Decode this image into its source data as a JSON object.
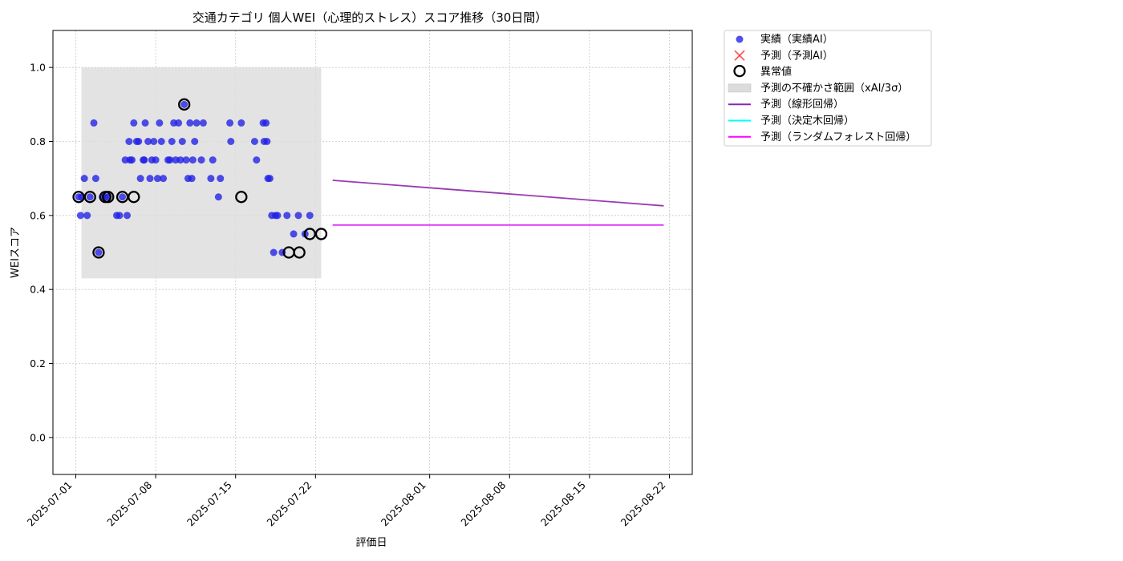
{
  "chart_data": {
    "type": "scatter",
    "title": "交通カテゴリ 個人WEI（心理的ストレス）スコア推移（30日間）",
    "xlabel": "評価日",
    "ylabel": "WEIスコア",
    "xlim": [
      "2025-06-29",
      "2025-08-24"
    ],
    "ylim": [
      -0.1,
      1.1
    ],
    "x_ticks": [
      "2025-07-01",
      "2025-07-08",
      "2025-07-15",
      "2025-07-22",
      "2025-08-01",
      "2025-08-08",
      "2025-08-15",
      "2025-08-22"
    ],
    "y_ticks": [
      "0.0",
      "0.2",
      "0.4",
      "0.6",
      "0.8",
      "1.0"
    ],
    "grid": true,
    "legend_position": "outside-top-right",
    "colors": {
      "actual": "#1f1fe6",
      "predicted": "#ff3030",
      "outlier": "#000000",
      "band": "#dcdcdc",
      "linear": "#8e24aa",
      "tree": "#00ffff",
      "forest": "#ff00ff"
    },
    "legend": [
      {
        "key": "actual",
        "label": "実績（実績AI）",
        "marker": "dot"
      },
      {
        "key": "predicted",
        "label": "予測（予測AI）",
        "marker": "x"
      },
      {
        "key": "outlier",
        "label": "異常値",
        "marker": "ring"
      },
      {
        "key": "band",
        "label": "予測の不確かさ範囲（xAI/3σ）",
        "marker": "rect"
      },
      {
        "key": "linear",
        "label": "予測（線形回帰）",
        "marker": "line"
      },
      {
        "key": "tree",
        "label": "予測（決定木回帰）",
        "marker": "line"
      },
      {
        "key": "forest",
        "label": "予測（ランダムフォレスト回帰）",
        "marker": "line"
      }
    ],
    "uncertainty_band": {
      "x": [
        "2025-07-01 12:00",
        "2025-07-22 12:00"
      ],
      "y": [
        0.43,
        1.0
      ]
    },
    "actual_points": [
      {
        "x": "2025-07-01 06:00",
        "y": 0.65
      },
      {
        "x": "2025-07-01 10:00",
        "y": 0.6
      },
      {
        "x": "2025-07-01 12:00",
        "y": 0.65
      },
      {
        "x": "2025-07-01 18:00",
        "y": 0.7
      },
      {
        "x": "2025-07-02 00:00",
        "y": 0.6
      },
      {
        "x": "2025-07-02 06:00",
        "y": 0.65
      },
      {
        "x": "2025-07-02 14:00",
        "y": 0.85
      },
      {
        "x": "2025-07-02 18:00",
        "y": 0.7
      },
      {
        "x": "2025-07-03 00:00",
        "y": 0.5
      },
      {
        "x": "2025-07-03 08:00",
        "y": 0.65
      },
      {
        "x": "2025-07-03 14:00",
        "y": 0.65
      },
      {
        "x": "2025-07-03 20:00",
        "y": 0.65
      },
      {
        "x": "2025-07-04 14:00",
        "y": 0.6
      },
      {
        "x": "2025-07-04 20:00",
        "y": 0.6
      },
      {
        "x": "2025-07-05 02:00",
        "y": 0.65
      },
      {
        "x": "2025-07-05 08:00",
        "y": 0.75
      },
      {
        "x": "2025-07-05 12:00",
        "y": 0.6
      },
      {
        "x": "2025-07-05 16:00",
        "y": 0.8
      },
      {
        "x": "2025-07-05 18:00",
        "y": 0.75
      },
      {
        "x": "2025-07-05 22:00",
        "y": 0.75
      },
      {
        "x": "2025-07-06 02:00",
        "y": 0.85
      },
      {
        "x": "2025-07-06 08:00",
        "y": 0.8
      },
      {
        "x": "2025-07-06 12:00",
        "y": 0.8
      },
      {
        "x": "2025-07-06 16:00",
        "y": 0.7
      },
      {
        "x": "2025-07-06 22:00",
        "y": 0.75
      },
      {
        "x": "2025-07-07 00:00",
        "y": 0.75
      },
      {
        "x": "2025-07-07 02:00",
        "y": 0.85
      },
      {
        "x": "2025-07-07 08:00",
        "y": 0.8
      },
      {
        "x": "2025-07-07 12:00",
        "y": 0.7
      },
      {
        "x": "2025-07-07 16:00",
        "y": 0.75
      },
      {
        "x": "2025-07-07 20:00",
        "y": 0.8
      },
      {
        "x": "2025-07-08 00:00",
        "y": 0.75
      },
      {
        "x": "2025-07-08 04:00",
        "y": 0.7
      },
      {
        "x": "2025-07-08 08:00",
        "y": 0.85
      },
      {
        "x": "2025-07-08 12:00",
        "y": 0.8
      },
      {
        "x": "2025-07-08 16:00",
        "y": 0.7
      },
      {
        "x": "2025-07-09 02:00",
        "y": 0.75
      },
      {
        "x": "2025-07-09 06:00",
        "y": 0.75
      },
      {
        "x": "2025-07-09 10:00",
        "y": 0.8
      },
      {
        "x": "2025-07-09 14:00",
        "y": 0.85
      },
      {
        "x": "2025-07-09 18:00",
        "y": 0.75
      },
      {
        "x": "2025-07-10 00:00",
        "y": 0.85
      },
      {
        "x": "2025-07-10 04:00",
        "y": 0.75
      },
      {
        "x": "2025-07-10 08:00",
        "y": 0.8
      },
      {
        "x": "2025-07-10 12:00",
        "y": 0.9
      },
      {
        "x": "2025-07-10 16:00",
        "y": 0.75
      },
      {
        "x": "2025-07-10 20:00",
        "y": 0.7
      },
      {
        "x": "2025-07-11 00:00",
        "y": 0.85
      },
      {
        "x": "2025-07-11 04:00",
        "y": 0.7
      },
      {
        "x": "2025-07-11 06:00",
        "y": 0.75
      },
      {
        "x": "2025-07-11 10:00",
        "y": 0.8
      },
      {
        "x": "2025-07-11 14:00",
        "y": 0.85
      },
      {
        "x": "2025-07-12 00:00",
        "y": 0.75
      },
      {
        "x": "2025-07-12 04:00",
        "y": 0.85
      },
      {
        "x": "2025-07-12 20:00",
        "y": 0.7
      },
      {
        "x": "2025-07-13 00:00",
        "y": 0.75
      },
      {
        "x": "2025-07-13 12:00",
        "y": 0.65
      },
      {
        "x": "2025-07-13 16:00",
        "y": 0.7
      },
      {
        "x": "2025-07-14 12:00",
        "y": 0.85
      },
      {
        "x": "2025-07-14 14:00",
        "y": 0.8
      },
      {
        "x": "2025-07-15 12:00",
        "y": 0.85
      },
      {
        "x": "2025-07-16 16:00",
        "y": 0.8
      },
      {
        "x": "2025-07-16 20:00",
        "y": 0.75
      },
      {
        "x": "2025-07-17 10:00",
        "y": 0.85
      },
      {
        "x": "2025-07-17 12:00",
        "y": 0.8
      },
      {
        "x": "2025-07-17 16:00",
        "y": 0.85
      },
      {
        "x": "2025-07-17 18:00",
        "y": 0.8
      },
      {
        "x": "2025-07-17 20:00",
        "y": 0.7
      },
      {
        "x": "2025-07-18 00:00",
        "y": 0.7
      },
      {
        "x": "2025-07-18 04:00",
        "y": 0.6
      },
      {
        "x": "2025-07-18 08:00",
        "y": 0.5
      },
      {
        "x": "2025-07-18 12:00",
        "y": 0.6
      },
      {
        "x": "2025-07-18 16:00",
        "y": 0.6
      },
      {
        "x": "2025-07-19 02:00",
        "y": 0.5
      },
      {
        "x": "2025-07-19 12:00",
        "y": 0.6
      },
      {
        "x": "2025-07-20 02:00",
        "y": 0.55
      },
      {
        "x": "2025-07-20 12:00",
        "y": 0.6
      },
      {
        "x": "2025-07-21 02:00",
        "y": 0.55
      },
      {
        "x": "2025-07-21 12:00",
        "y": 0.6
      }
    ],
    "outliers": [
      {
        "x": "2025-07-01 06:00",
        "y": 0.65
      },
      {
        "x": "2025-07-02 06:00",
        "y": 0.65
      },
      {
        "x": "2025-07-03 00:00",
        "y": 0.5
      },
      {
        "x": "2025-07-03 14:00",
        "y": 0.65
      },
      {
        "x": "2025-07-03 20:00",
        "y": 0.65
      },
      {
        "x": "2025-07-05 02:00",
        "y": 0.65
      },
      {
        "x": "2025-07-06 02:00",
        "y": 0.65
      },
      {
        "x": "2025-07-10 12:00",
        "y": 0.9
      },
      {
        "x": "2025-07-15 12:00",
        "y": 0.65
      },
      {
        "x": "2025-07-19 16:00",
        "y": 0.5
      },
      {
        "x": "2025-07-20 14:00",
        "y": 0.5
      },
      {
        "x": "2025-07-21 12:00",
        "y": 0.55
      },
      {
        "x": "2025-07-22 12:00",
        "y": 0.55
      }
    ],
    "series": [
      {
        "key": "linear",
        "x": [
          "2025-07-23 12:00",
          "2025-08-21 12:00"
        ],
        "values": [
          0.695,
          0.626
        ]
      },
      {
        "key": "tree",
        "x": [
          "2025-07-23 12:00",
          "2025-08-21 12:00"
        ],
        "values": [
          0.574,
          0.574
        ]
      },
      {
        "key": "forest",
        "x": [
          "2025-07-23 12:00",
          "2025-08-21 12:00"
        ],
        "values": [
          0.574,
          0.574
        ]
      }
    ]
  }
}
